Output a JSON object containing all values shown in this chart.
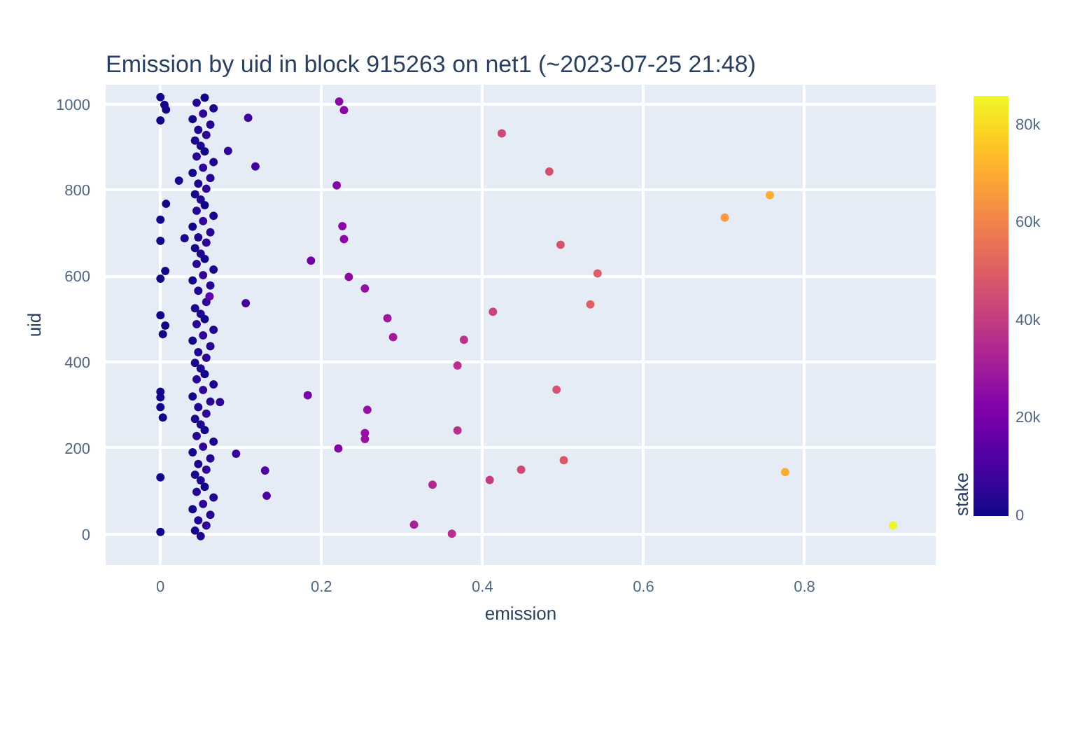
{
  "chart_data": {
    "type": "scatter",
    "title": "Emission by uid in block 915263 on net1 (~2023-07-25 21:48)",
    "xlabel": "emission",
    "ylabel": "uid",
    "clabel": "stake",
    "xlim": [
      -0.068,
      0.963
    ],
    "ylim": [
      -72,
      1045
    ],
    "xticks": [
      0,
      0.2,
      0.4,
      0.6,
      0.8
    ],
    "yticks": [
      0,
      200,
      400,
      600,
      800,
      1000
    ],
    "clim": [
      0,
      86000
    ],
    "cticks": [
      {
        "value": 0,
        "label": "0"
      },
      {
        "value": 20000,
        "label": "20k"
      },
      {
        "value": 40000,
        "label": "40k"
      },
      {
        "value": 60000,
        "label": "60k"
      },
      {
        "value": 80000,
        "label": "80k"
      }
    ],
    "grid": true,
    "marker": "circle",
    "x": [
      0.05,
      0.043,
      0.057,
      0.047,
      0.062,
      0.04,
      0.053,
      0.066,
      0.045,
      0.055,
      0.05,
      0.043,
      0.057,
      0.047,
      0.062,
      0.04,
      0.053,
      0.066,
      0.045,
      0.055,
      0.05,
      0.043,
      0.057,
      0.047,
      0.062,
      0.04,
      0.053,
      0.066,
      0.045,
      0.055,
      0.05,
      0.043,
      0.057,
      0.047,
      0.062,
      0.04,
      0.053,
      0.066,
      0.045,
      0.055,
      0.05,
      0.043,
      0.057,
      0.047,
      0.062,
      0.04,
      0.053,
      0.066,
      0.045,
      0.055,
      0.05,
      0.043,
      0.057,
      0.047,
      0.062,
      0.04,
      0.053,
      0.066,
      0.045,
      0.055,
      0.05,
      0.043,
      0.057,
      0.047,
      0.062,
      0.04,
      0.053,
      0.066,
      0.045,
      0.055,
      0.05,
      0.043,
      0.057,
      0.047,
      0.062,
      0.04,
      0.053,
      0.066,
      0.045,
      0.055,
      0.0,
      0.005,
      0.007,
      0.0,
      0.007,
      0.0,
      0.0,
      0.006,
      0.0,
      0.0,
      0.006,
      0.003,
      0.0,
      0.0,
      0.0,
      0.003,
      0.0,
      0.0,
      0.109,
      0.084,
      0.118,
      0.023,
      0.03,
      0.106,
      0.074,
      0.094,
      0.13,
      0.132,
      0.061,
      0.222,
      0.228,
      0.424,
      0.483,
      0.219,
      0.226,
      0.228,
      0.187,
      0.497,
      0.234,
      0.543,
      0.254,
      0.534,
      0.413,
      0.282,
      0.289,
      0.377,
      0.369,
      0.183,
      0.492,
      0.257,
      0.254,
      0.254,
      0.369,
      0.221,
      0.501,
      0.448,
      0.409,
      0.338,
      0.315,
      0.362,
      0.757,
      0.701,
      0.776,
      0.91
    ],
    "values": [
      -5,
      8,
      20,
      32,
      45,
      58,
      70,
      85,
      98,
      110,
      125,
      138,
      150,
      163,
      176,
      190,
      203,
      215,
      228,
      242,
      255,
      268,
      280,
      295,
      308,
      320,
      335,
      348,
      360,
      372,
      385,
      398,
      410,
      423,
      437,
      450,
      462,
      475,
      488,
      500,
      512,
      525,
      540,
      566,
      578,
      590,
      602,
      615,
      628,
      640,
      652,
      665,
      678,
      690,
      702,
      715,
      728,
      740,
      752,
      765,
      778,
      790,
      803,
      815,
      828,
      840,
      852,
      865,
      878,
      890,
      903,
      915,
      928,
      940,
      952,
      965,
      978,
      990,
      1003,
      1015,
      1016,
      998,
      987,
      962,
      768,
      731,
      682,
      612,
      594,
      509,
      485,
      465,
      331,
      318,
      295,
      271,
      132,
      5,
      968,
      891,
      855,
      822,
      688,
      537,
      307,
      187,
      148,
      89,
      553,
      1006,
      986,
      932,
      843,
      811,
      716,
      686,
      636,
      673,
      598,
      606,
      571,
      534,
      517,
      502,
      458,
      452,
      392,
      323,
      336,
      289,
      235,
      221,
      241,
      199,
      172,
      150,
      126,
      115,
      22,
      1,
      788,
      736,
      144,
      20
    ],
    "cvalues": [
      3000,
      1500,
      5000,
      2500,
      4000,
      1000,
      6000,
      2000,
      3500,
      500,
      3000,
      1500,
      5000,
      2500,
      4000,
      1000,
      6000,
      2000,
      3500,
      500,
      3000,
      1500,
      5000,
      2500,
      4000,
      1000,
      6000,
      2000,
      3500,
      500,
      3000,
      1500,
      5000,
      2500,
      4000,
      1000,
      6000,
      2000,
      3500,
      500,
      3000,
      1500,
      5000,
      2500,
      4000,
      1000,
      6000,
      2000,
      3500,
      500,
      3000,
      1500,
      5000,
      2500,
      4000,
      1000,
      6000,
      2000,
      3500,
      500,
      3000,
      1500,
      5000,
      2500,
      4000,
      1000,
      6000,
      2000,
      3500,
      500,
      3000,
      1500,
      5000,
      2500,
      4000,
      1000,
      6000,
      2000,
      3500,
      500,
      1000,
      1000,
      1000,
      1000,
      1000,
      1000,
      1000,
      1000,
      1000,
      1000,
      1000,
      1000,
      1000,
      1000,
      1000,
      1000,
      1000,
      1000,
      8000,
      6000,
      9000,
      2000,
      2000,
      9000,
      5000,
      7000,
      11000,
      11000,
      15000,
      24000,
      24000,
      44000,
      46000,
      23000,
      24000,
      24000,
      20000,
      47000,
      25000,
      50000,
      27000,
      50000,
      42000,
      29000,
      30000,
      37000,
      36000,
      20000,
      47000,
      27000,
      27000,
      27000,
      36000,
      23000,
      48000,
      44000,
      40000,
      34000,
      32000,
      36000,
      70000,
      66000,
      70000,
      85000
    ]
  }
}
